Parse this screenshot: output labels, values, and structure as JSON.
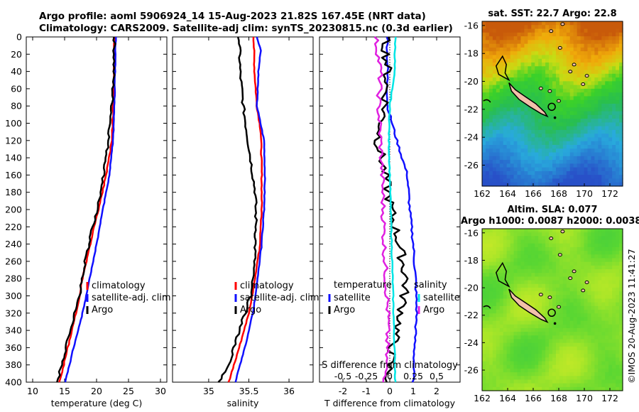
{
  "header": {
    "line1": "Argo profile: aoml 5906924_14 15-Aug-2023 21.82S 167.45E (NRT data)",
    "line2": "Climatology: CARS2009. Satellite-adj clim: synTS_20230815.nc (0.3d earlier)"
  },
  "watermark": "©IMOS 20-Aug-2023 11:41:27",
  "colors": {
    "climatology": "#ff0000",
    "satellite": "#1010ff",
    "argo": "#000000",
    "salinity_satellite": "#00e5e5",
    "salinity_argo": "#e020e0",
    "land": "#f2c0aa"
  },
  "chart_data": [
    {
      "type": "line",
      "title": "temperature profile",
      "xlabel": "temperature (deg C)",
      "ylabel": "",
      "xlim": [
        9,
        31
      ],
      "ylim": [
        400,
        0
      ],
      "x_ticks": [
        "10",
        "15",
        "20",
        "25",
        "30"
      ],
      "y_ticks": [
        "0",
        "20",
        "40",
        "60",
        "80",
        "100",
        "120",
        "140",
        "160",
        "180",
        "200",
        "220",
        "240",
        "260",
        "280",
        "300",
        "320",
        "340",
        "360",
        "380",
        "400"
      ],
      "legend": [
        "climatology",
        "satellite-adj. clim",
        "Argo"
      ],
      "series": [
        {
          "name": "climatology",
          "depth": [
            0,
            40,
            80,
            120,
            160,
            200,
            240,
            280,
            320,
            360,
            400
          ],
          "values": [
            22.8,
            22.7,
            22.6,
            22.4,
            21.5,
            20.3,
            19.0,
            17.8,
            16.8,
            15.5,
            14.2
          ]
        },
        {
          "name": "satellite-adj. clim",
          "depth": [
            0,
            40,
            80,
            120,
            160,
            200,
            240,
            280,
            320,
            360,
            400
          ],
          "values": [
            23.0,
            22.9,
            22.8,
            22.6,
            22.0,
            21.0,
            20.0,
            18.9,
            17.8,
            16.4,
            15.1
          ]
        },
        {
          "name": "Argo",
          "depth": [
            0,
            40,
            80,
            110,
            140,
            180,
            220,
            260,
            300,
            340,
            380,
            400
          ],
          "values": [
            22.8,
            22.7,
            22.4,
            22.0,
            21.5,
            20.7,
            19.4,
            18.2,
            17.3,
            15.9,
            14.5,
            13.9
          ]
        }
      ]
    },
    {
      "type": "line",
      "title": "salinity profile",
      "xlabel": "salinity",
      "xlim": [
        34.55,
        36.3
      ],
      "ylim": [
        400,
        0
      ],
      "x_ticks": [
        "35",
        "35.5",
        "36"
      ],
      "legend": [
        "climatology",
        "satellite-adj. clim",
        "Argo"
      ],
      "series": [
        {
          "name": "climatology",
          "depth": [
            0,
            40,
            80,
            110,
            160,
            200,
            240,
            280,
            320,
            360,
            400
          ],
          "values": [
            35.56,
            35.57,
            35.6,
            35.65,
            35.66,
            35.66,
            35.64,
            35.58,
            35.5,
            35.38,
            35.25
          ]
        },
        {
          "name": "satellite-adj. clim",
          "depth": [
            0,
            15,
            40,
            80,
            120,
            160,
            200,
            240,
            280,
            320,
            360,
            400
          ],
          "values": [
            35.6,
            35.65,
            35.62,
            35.6,
            35.69,
            35.7,
            35.69,
            35.66,
            35.61,
            35.55,
            35.45,
            35.33
          ]
        },
        {
          "name": "Argo",
          "depth": [
            0,
            40,
            80,
            100,
            140,
            180,
            220,
            260,
            300,
            340,
            380,
            400
          ],
          "values": [
            35.38,
            35.39,
            35.43,
            35.46,
            35.52,
            35.58,
            35.59,
            35.57,
            35.52,
            35.38,
            35.25,
            35.13
          ]
        }
      ]
    },
    {
      "type": "line",
      "title": "difference from climatology",
      "xlabel": "T difference from climatology",
      "x2label": "S difference from climatology",
      "xlim": [
        -3,
        3
      ],
      "x2lim": [
        -0.75,
        0.75
      ],
      "ylim": [
        400,
        0
      ],
      "x_ticks": [
        "-2",
        "-1",
        "0",
        "1",
        "2"
      ],
      "x2_ticks": [
        "-0.5",
        "-0.25",
        "0",
        "0.25",
        "0.5"
      ],
      "legend_temperature_title": "temperature",
      "legend_salinity_title": "salinity",
      "legend_temperature": [
        "satellite",
        "Argo"
      ],
      "legend_salinity": [
        "satellite",
        "Argo"
      ],
      "series": [
        {
          "name": "temperature satellite",
          "axis": "T",
          "depth": [
            0,
            40,
            80,
            120,
            160,
            200,
            240,
            280,
            320,
            360,
            400
          ],
          "values": [
            -0.1,
            -0.1,
            -0.1,
            0.3,
            0.75,
            0.85,
            1.0,
            1.1,
            1.15,
            1.05,
            1.0
          ]
        },
        {
          "name": "temperature Argo",
          "axis": "T",
          "depth": [
            0,
            40,
            80,
            120,
            160,
            200,
            240,
            280,
            320,
            360,
            400
          ],
          "values": [
            -0.2,
            -0.1,
            -0.2,
            -0.5,
            -0.2,
            0.05,
            0.4,
            0.7,
            0.5,
            0.1,
            -0.1
          ]
        },
        {
          "name": "salinity satellite",
          "axis": "S",
          "depth": [
            0,
            40,
            80,
            120,
            160,
            200,
            240,
            280,
            320,
            360,
            400
          ],
          "values": [
            0.06,
            0.05,
            0.0,
            -0.01,
            0.0,
            0.01,
            0.02,
            0.03,
            0.04,
            0.05,
            0.06
          ]
        },
        {
          "name": "salinity Argo",
          "axis": "S",
          "depth": [
            0,
            40,
            80,
            120,
            160,
            200,
            240,
            280,
            320,
            360,
            400
          ],
          "values": [
            -0.15,
            -0.1,
            -0.12,
            -0.1,
            -0.08,
            -0.07,
            -0.06,
            -0.04,
            -0.02,
            -0.03,
            -0.05
          ]
        }
      ]
    },
    {
      "type": "heatmap",
      "title": "sat. SST: 22.7 Argo: 22.8",
      "xlim": [
        162,
        173
      ],
      "ylim": [
        -27.5,
        -15.7
      ],
      "x_ticks": [
        "162",
        "164",
        "166",
        "168",
        "170",
        "172"
      ],
      "y_ticks": [
        "-16",
        "-18",
        "-20",
        "-22",
        "-24",
        "-26"
      ],
      "marker": {
        "lon": 167.45,
        "lat": -21.82
      }
    },
    {
      "type": "heatmap",
      "title": "Altim. SLA: 0.077",
      "subtitle": "Argo h1000: 0.0087 h2000: 0.0038",
      "xlim": [
        162,
        173
      ],
      "ylim": [
        -27.5,
        -15.7
      ],
      "x_ticks": [
        "162",
        "164",
        "166",
        "168",
        "170",
        "172"
      ],
      "y_ticks": [
        "-16",
        "-18",
        "-20",
        "-22",
        "-24",
        "-26"
      ],
      "marker": {
        "lon": 167.45,
        "lat": -21.82
      }
    }
  ]
}
